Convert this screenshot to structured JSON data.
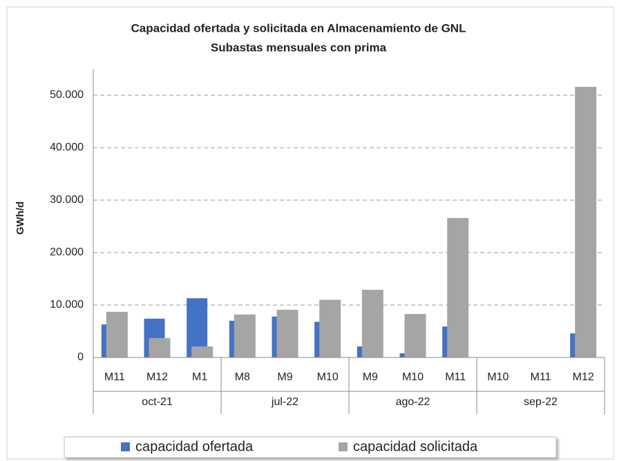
{
  "chart_data": {
    "type": "bar",
    "title": "Capacidad ofertada y solicitada en Almacenamiento de GNL",
    "subtitle": "Subastas mensuales con prima",
    "y_label": "GWh/d",
    "categories": [
      "M11",
      "M12",
      "M1",
      "M8",
      "M9",
      "M10",
      "M9",
      "M10",
      "M11",
      "M10",
      "M11",
      "M12"
    ],
    "category_groups": [
      "oct-21",
      "jul-22",
      "ago-22",
      "sep-22"
    ],
    "series": [
      {
        "name": "capacidad ofertada",
        "color": "#4472c4",
        "values": [
          6300,
          7400,
          11300,
          7000,
          7800,
          6800,
          2100,
          800,
          5900,
          0,
          0,
          4600
        ]
      },
      {
        "name": "capacidad solicitada",
        "color": "#a5a5a5",
        "values": [
          8700,
          3700,
          2100,
          8200,
          9100,
          11000,
          12900,
          8300,
          26600,
          0,
          0,
          51600
        ]
      }
    ],
    "ylim": [
      0,
      55000
    ],
    "yticks": [
      0,
      {
        "value": 10000,
        "label": "10.000"
      },
      {
        "value": 20000,
        "label": "20.000"
      },
      {
        "value": 30000,
        "label": "30.000"
      },
      {
        "value": 40000,
        "label": "40.000"
      },
      {
        "value": 50000,
        "label": "50.000"
      }
    ],
    "grid": true,
    "legend": "bottom"
  }
}
